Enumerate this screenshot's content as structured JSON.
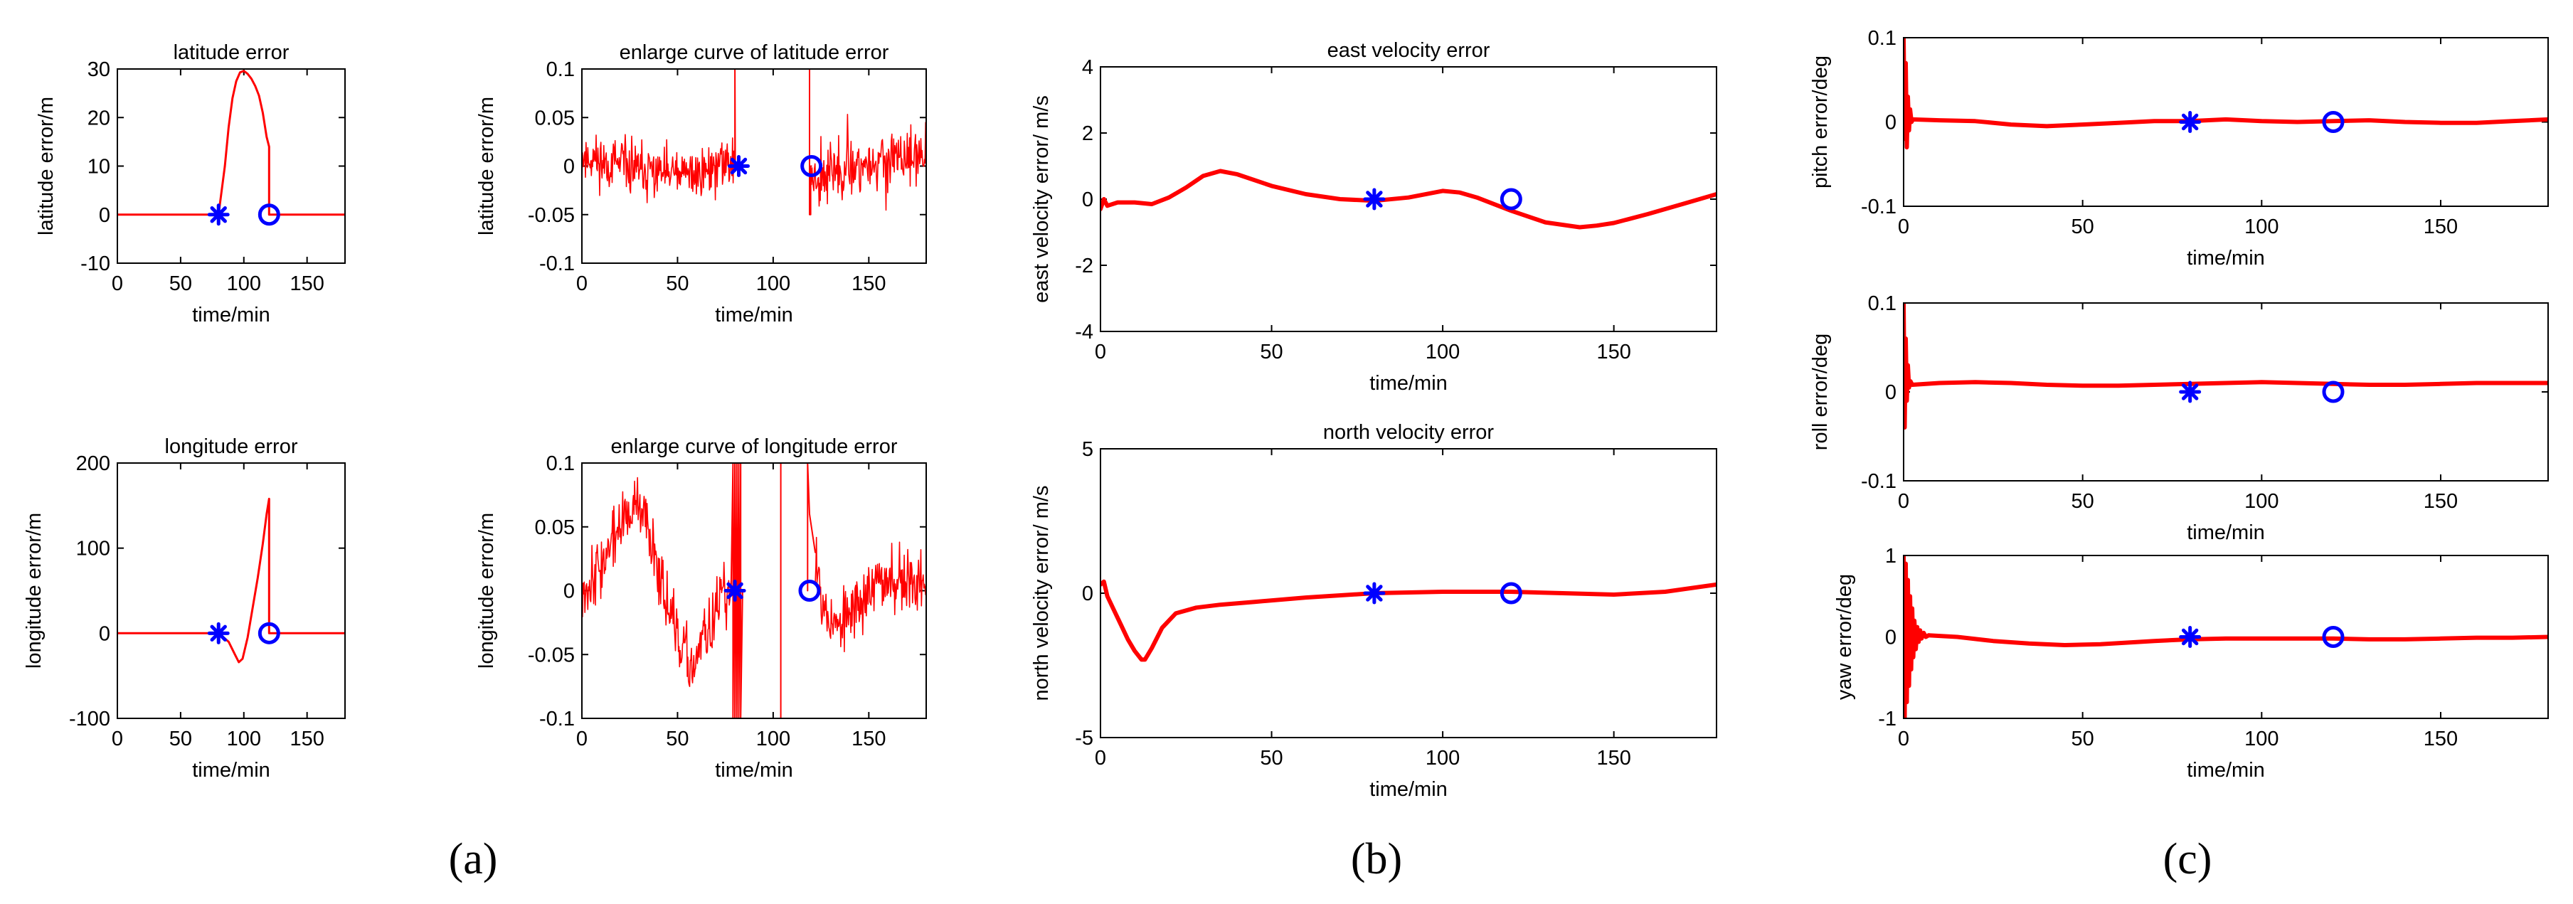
{
  "colors": {
    "curve": "#ff0000",
    "marker": "#0000ff",
    "axes": "#000000",
    "background": "#ffffff"
  },
  "panel_labels": [
    "(a)",
    "(b)",
    "(c)"
  ],
  "chart_data": [
    {
      "id": "lat",
      "type": "line",
      "title": "latitude error",
      "xlabel": "time/min",
      "ylabel": "latitude error/m",
      "xlim": [
        0,
        180
      ],
      "ylim": [
        -10,
        30
      ],
      "xticks": [
        0,
        50,
        100,
        150
      ],
      "yticks": [
        -10,
        0,
        10,
        20,
        30
      ],
      "ytick_labels": [
        "-10",
        "0",
        "10",
        "20",
        "30"
      ],
      "line_width": 3,
      "series": [
        {
          "kind": "line",
          "x": [
            0,
            70,
            80,
            85,
            88,
            91,
            94,
            97,
            100,
            103,
            106,
            109,
            112,
            115,
            118,
            120,
            120,
            121,
            180
          ],
          "y": [
            0,
            0,
            0,
            10,
            18,
            24,
            27.5,
            29.3,
            29.6,
            29,
            28,
            26.5,
            24.5,
            21,
            16,
            14,
            0,
            0,
            0
          ]
        }
      ],
      "markers": [
        {
          "symbol": "asterisk",
          "x": 80,
          "y": 0
        },
        {
          "symbol": "circle",
          "x": 120,
          "y": 0
        }
      ]
    },
    {
      "id": "lat_zoom",
      "type": "line",
      "title": "enlarge curve of latitude error",
      "xlabel": "time/min",
      "ylabel": "latitude error/m",
      "xlim": [
        0,
        180
      ],
      "ylim": [
        -0.1,
        0.1
      ],
      "xticks": [
        0,
        50,
        100,
        150
      ],
      "yticks": [
        -0.1,
        -0.05,
        0,
        0.05,
        0.1
      ],
      "ytick_labels": [
        "-0.1",
        "-0.05",
        "0",
        "0.05",
        "0.1"
      ],
      "line_width": 2,
      "series": [
        {
          "kind": "noisy",
          "x": [
            0,
            30,
            55,
            80
          ],
          "y": [
            0.01,
            -0.005,
            -0.01,
            0.005
          ],
          "noise": 0.013,
          "seed": 11
        },
        {
          "kind": "line",
          "x": [
            80,
            80,
            80.2
          ],
          "y": [
            0,
            0.1,
            0
          ]
        },
        {
          "kind": "line",
          "x": [
            119,
            119,
            119.6,
            119.6,
            120
          ],
          "y": [
            0.1,
            -0.05,
            -0.05,
            0,
            0
          ]
        },
        {
          "kind": "noisy",
          "x": [
            120,
            140,
            160,
            180
          ],
          "y": [
            -0.01,
            0,
            0.005,
            0.01
          ],
          "noise": 0.014,
          "seed": 23
        }
      ],
      "markers": [
        {
          "symbol": "asterisk",
          "x": 82,
          "y": 0
        },
        {
          "symbol": "circle",
          "x": 120,
          "y": 0
        }
      ]
    },
    {
      "id": "lon",
      "type": "line",
      "title": "longitude error",
      "xlabel": "time/min",
      "ylabel": "longitude error/m",
      "xlim": [
        0,
        180
      ],
      "ylim": [
        -100,
        200
      ],
      "xticks": [
        0,
        50,
        100,
        150
      ],
      "yticks": [
        -100,
        0,
        100,
        200
      ],
      "ytick_labels": [
        "-100",
        "0",
        "100",
        "200"
      ],
      "line_width": 3,
      "series": [
        {
          "kind": "line",
          "x": [
            0,
            80,
            88,
            93,
            96,
            99,
            103,
            107,
            111,
            115,
            118,
            120,
            120,
            121,
            180
          ],
          "y": [
            0,
            0,
            -10,
            -25,
            -34,
            -30,
            -5,
            30,
            65,
            105,
            140,
            158,
            0,
            0,
            0
          ]
        }
      ],
      "markers": [
        {
          "symbol": "asterisk",
          "x": 80,
          "y": 0
        },
        {
          "symbol": "circle",
          "x": 120,
          "y": 0
        }
      ]
    },
    {
      "id": "lon_zoom",
      "type": "line",
      "title": "enlarge curve of longitude error",
      "xlabel": "time/min",
      "ylabel": "longitude error/m",
      "xlim": [
        0,
        180
      ],
      "ylim": [
        -0.1,
        0.1
      ],
      "xticks": [
        0,
        50,
        100,
        150
      ],
      "yticks": [
        -0.1,
        -0.05,
        0,
        0.05,
        0.1
      ],
      "ytick_labels": [
        "-0.1",
        "-0.05",
        "0",
        "0.05",
        "0.1"
      ],
      "line_width": 2,
      "series": [
        {
          "kind": "noisy",
          "x": [
            0,
            10,
            20,
            28,
            35,
            45,
            52,
            58,
            65,
            72,
            78
          ],
          "y": [
            0,
            0.02,
            0.05,
            0.065,
            0.05,
            -0.01,
            -0.05,
            -0.06,
            -0.035,
            -0.01,
            0
          ],
          "noise": 0.012,
          "seed": 37
        },
        {
          "kind": "line",
          "x": [
            78,
            79,
            79,
            80,
            80,
            81,
            81,
            82,
            82,
            83,
            83,
            84
          ],
          "y": [
            0,
            0.1,
            -0.1,
            0.1,
            -0.1,
            0.1,
            -0.1,
            0.1,
            -0.1,
            0.1,
            -0.1,
            0
          ]
        },
        {
          "kind": "line",
          "x": [
            104,
            104
          ],
          "y": [
            0.1,
            -0.1
          ]
        },
        {
          "kind": "line",
          "x": [
            118,
            118,
            119,
            122
          ],
          "y": [
            0,
            0.1,
            0.06,
            0.03
          ]
        },
        {
          "kind": "noisy",
          "x": [
            122,
            128,
            135,
            142,
            150,
            160,
            170,
            180
          ],
          "y": [
            0.03,
            -0.02,
            -0.03,
            -0.015,
            0,
            0.01,
            0.008,
            0.005
          ],
          "noise": 0.012,
          "seed": 53
        }
      ],
      "markers": [
        {
          "symbol": "asterisk",
          "x": 80,
          "y": 0
        },
        {
          "symbol": "circle",
          "x": 119,
          "y": 0
        }
      ]
    },
    {
      "id": "vel_e",
      "type": "line",
      "title": "east velocity error",
      "xlabel": "time/min",
      "ylabel": "east velocity error/ m/s",
      "xlim": [
        0,
        180
      ],
      "ylim": [
        -4,
        4
      ],
      "xticks": [
        0,
        50,
        100,
        150
      ],
      "yticks": [
        -4,
        -2,
        0,
        2,
        4
      ],
      "ytick_labels": [
        "-4",
        "-2",
        "0",
        "2",
        "4"
      ],
      "line_width": 6,
      "series": [
        {
          "kind": "line",
          "x": [
            0,
            1,
            2,
            5,
            10,
            15,
            20,
            25,
            30,
            35,
            40,
            50,
            60,
            70,
            80,
            90,
            100,
            105,
            110,
            120,
            130,
            140,
            145,
            150,
            160,
            170,
            180
          ],
          "y": [
            -0.3,
            0,
            -0.2,
            -0.1,
            -0.1,
            -0.15,
            0.05,
            0.35,
            0.7,
            0.85,
            0.75,
            0.4,
            0.15,
            0,
            -0.05,
            0.05,
            0.25,
            0.2,
            0.05,
            -0.35,
            -0.7,
            -0.85,
            -0.8,
            -0.72,
            -0.45,
            -0.15,
            0.15
          ]
        }
      ],
      "markers": [
        {
          "symbol": "asterisk",
          "x": 80,
          "y": 0
        },
        {
          "symbol": "circle",
          "x": 120,
          "y": 0
        }
      ]
    },
    {
      "id": "vel_n",
      "type": "line",
      "title": "north velocity error",
      "xlabel": "time/min",
      "ylabel": "north velocity error/ m/s",
      "xlim": [
        0,
        180
      ],
      "ylim": [
        -5,
        5
      ],
      "xticks": [
        0,
        50,
        100,
        150
      ],
      "yticks": [
        -5,
        0,
        5
      ],
      "ytick_labels": [
        "-5",
        "0",
        "5"
      ],
      "line_width": 6,
      "series": [
        {
          "kind": "line",
          "x": [
            0,
            1,
            2,
            4,
            6,
            8,
            10,
            12,
            13,
            15,
            18,
            22,
            28,
            35,
            45,
            60,
            80,
            100,
            120,
            135,
            150,
            165,
            180
          ],
          "y": [
            0.3,
            0.4,
            -0.1,
            -0.6,
            -1.1,
            -1.6,
            -2.0,
            -2.3,
            -2.3,
            -1.9,
            -1.2,
            -0.7,
            -0.5,
            -0.4,
            -0.3,
            -0.15,
            0,
            0.05,
            0.05,
            0,
            -0.05,
            0.05,
            0.3
          ]
        }
      ],
      "markers": [
        {
          "symbol": "asterisk",
          "x": 80,
          "y": 0
        },
        {
          "symbol": "circle",
          "x": 120,
          "y": 0
        }
      ]
    },
    {
      "id": "pitch",
      "type": "line",
      "title": "",
      "xlabel": "time/min",
      "ylabel": "pitch error/deg",
      "xlim": [
        0,
        180
      ],
      "ylim": [
        -0.1,
        0.1
      ],
      "xticks": [
        0,
        50,
        100,
        150
      ],
      "yticks": [
        -0.1,
        0,
        0.1
      ],
      "ytick_labels": [
        "-0.1",
        "0",
        "0.1"
      ],
      "line_width": 6,
      "series": [
        {
          "kind": "line",
          "x": [
            0,
            0.3,
            0.6,
            0.9,
            1.2,
            1.5,
            1.8,
            2.2,
            2.6
          ],
          "y": [
            0.1,
            -0.02,
            0.07,
            -0.03,
            0.03,
            -0.01,
            0.015,
            0,
            0.003
          ]
        },
        {
          "kind": "line",
          "x": [
            2.6,
            10,
            20,
            30,
            40,
            50,
            60,
            70,
            80,
            90,
            100,
            110,
            120,
            130,
            140,
            150,
            160,
            170,
            180
          ],
          "y": [
            0.003,
            0.002,
            0.001,
            -0.003,
            -0.005,
            -0.003,
            -0.001,
            0.001,
            0.001,
            0.003,
            0.001,
            0,
            0.001,
            0.002,
            0,
            -0.001,
            -0.001,
            0.001,
            0.003
          ]
        }
      ],
      "markers": [
        {
          "symbol": "asterisk",
          "x": 80,
          "y": 0
        },
        {
          "symbol": "circle",
          "x": 120,
          "y": 0
        }
      ]
    },
    {
      "id": "roll",
      "type": "line",
      "title": "",
      "xlabel": "time/min",
      "ylabel": "roll error/deg",
      "xlim": [
        0,
        180
      ],
      "ylim": [
        -0.1,
        0.1
      ],
      "xticks": [
        0,
        50,
        100,
        150
      ],
      "yticks": [
        -0.1,
        0,
        0.1
      ],
      "ytick_labels": [
        "-0.1",
        "0",
        "0.1"
      ],
      "line_width": 6,
      "series": [
        {
          "kind": "line",
          "x": [
            0,
            0.3,
            0.6,
            0.9,
            1.2,
            1.5,
            1.9,
            2.4
          ],
          "y": [
            0.1,
            -0.04,
            0.06,
            -0.01,
            0.03,
            0.005,
            0.012,
            0.008
          ]
        },
        {
          "kind": "line",
          "x": [
            2.4,
            10,
            20,
            30,
            40,
            50,
            60,
            70,
            80,
            90,
            100,
            110,
            120,
            130,
            140,
            150,
            160,
            170,
            180
          ],
          "y": [
            0.008,
            0.01,
            0.011,
            0.01,
            0.008,
            0.007,
            0.007,
            0.008,
            0.009,
            0.01,
            0.011,
            0.01,
            0.009,
            0.008,
            0.008,
            0.009,
            0.01,
            0.01,
            0.01
          ]
        }
      ],
      "markers": [
        {
          "symbol": "asterisk",
          "x": 80,
          "y": 0
        },
        {
          "symbol": "circle",
          "x": 120,
          "y": 0
        }
      ]
    },
    {
      "id": "yaw",
      "type": "line",
      "title": "",
      "xlabel": "time/min",
      "ylabel": "yaw error/deg",
      "xlim": [
        0,
        180
      ],
      "ylim": [
        -1,
        1
      ],
      "xticks": [
        0,
        50,
        100,
        150
      ],
      "yticks": [
        -1,
        0,
        1
      ],
      "ytick_labels": [
        "-1",
        "0",
        "1"
      ],
      "line_width": 6,
      "series": [
        {
          "kind": "line",
          "x": [
            0,
            0.3,
            0.6,
            0.9,
            1.2,
            1.5,
            1.8,
            2.1,
            2.4,
            2.7,
            3.0,
            3.4,
            3.8,
            4.2,
            4.6,
            5.0,
            5.6,
            6.2,
            7.0
          ],
          "y": [
            1,
            -1,
            0.9,
            -0.8,
            0.7,
            -0.6,
            0.5,
            -0.4,
            0.35,
            -0.25,
            0.2,
            -0.15,
            0.12,
            -0.06,
            0.08,
            -0.02,
            0.05,
            0.0,
            0.02
          ]
        },
        {
          "kind": "line",
          "x": [
            7,
            15,
            25,
            35,
            45,
            55,
            70,
            80,
            90,
            100,
            110,
            120,
            130,
            140,
            150,
            160,
            170,
            180
          ],
          "y": [
            0.02,
            0,
            -0.05,
            -0.08,
            -0.1,
            -0.09,
            -0.05,
            -0.03,
            -0.02,
            -0.02,
            -0.02,
            -0.02,
            -0.03,
            -0.03,
            -0.02,
            -0.01,
            -0.01,
            0
          ]
        }
      ],
      "markers": [
        {
          "symbol": "asterisk",
          "x": 80,
          "y": 0
        },
        {
          "symbol": "circle",
          "x": 120,
          "y": 0
        }
      ]
    }
  ]
}
